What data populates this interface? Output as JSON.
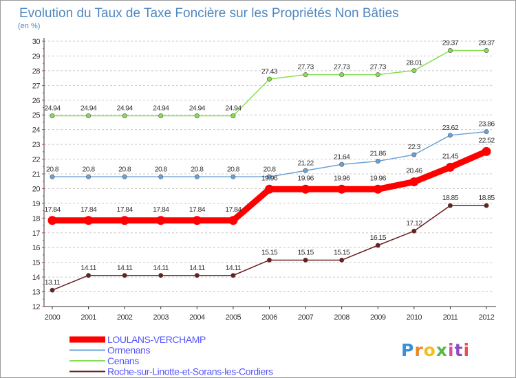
{
  "chart_data": {
    "type": "line",
    "title": "Evolution du Taux de Taxe Foncière sur les Propriétés Non Bâties",
    "ylabel": "(en %)",
    "x": [
      "2000",
      "2001",
      "2002",
      "2003",
      "2004",
      "2005",
      "2006",
      "2007",
      "2008",
      "2009",
      "2010",
      "2011",
      "2012"
    ],
    "ylim": [
      12,
      30
    ],
    "yticks": [
      "12",
      "13",
      "14",
      "15",
      "16",
      "17",
      "18",
      "19",
      "20",
      "21",
      "22",
      "23",
      "24",
      "25",
      "26",
      "27",
      "28",
      "29",
      "30"
    ],
    "grid": "horizontal dashed",
    "legend_position": "bottom-left",
    "series": [
      {
        "name": "LOULANS-VERCHAMP",
        "color": "#ff0000",
        "legend_text_color": "#5555ff",
        "emphasis": "bold",
        "values": [
          17.84,
          17.84,
          17.84,
          17.84,
          17.84,
          17.84,
          19.96,
          19.96,
          19.96,
          19.96,
          20.46,
          21.45,
          22.52
        ],
        "labels": [
          "17.84",
          "17.84",
          "17.84",
          "17.84",
          "17.84",
          "17.84",
          "19.96",
          "19.96",
          "19.96",
          "19.96",
          "20.46",
          "21.45",
          "22.52"
        ]
      },
      {
        "name": "Ormenans",
        "color": "#6aa2d8",
        "legend_text_color": "#5555ff",
        "emphasis": "normal",
        "values": [
          20.8,
          20.8,
          20.8,
          20.8,
          20.8,
          20.8,
          20.8,
          21.22,
          21.64,
          21.86,
          22.3,
          23.62,
          23.86
        ],
        "labels": [
          "20.8",
          "20.8",
          "20.8",
          "20.8",
          "20.8",
          "20.8",
          "20.8",
          "21.22",
          "21.64",
          "21.86",
          "22.3",
          "23.62",
          "23.86"
        ]
      },
      {
        "name": "Cenans",
        "color": "#88dd55",
        "legend_text_color": "#5555ff",
        "emphasis": "normal",
        "values": [
          24.94,
          24.94,
          24.94,
          24.94,
          24.94,
          24.94,
          27.43,
          27.73,
          27.73,
          27.73,
          28.01,
          29.37,
          29.37
        ],
        "labels": [
          "24.94",
          "24.94",
          "24.94",
          "24.94",
          "24.94",
          "24.94",
          "27.43",
          "27.73",
          "27.73",
          "27.73",
          "28.01",
          "29.37",
          "29.37"
        ]
      },
      {
        "name": "Roche-sur-Linotte-et-Sorans-les-Cordiers",
        "color": "#6b1f1f",
        "legend_text_color": "#5555ff",
        "emphasis": "normal",
        "values": [
          13.11,
          14.11,
          14.11,
          14.11,
          14.11,
          14.11,
          15.15,
          15.15,
          15.15,
          16.15,
          17.12,
          18.85,
          18.85
        ],
        "labels": [
          "13.11",
          "14.11",
          "14.11",
          "14.11",
          "14.11",
          "14.11",
          "15.15",
          "15.15",
          "15.15",
          "16.15",
          "17.12",
          "18.85",
          "18.85"
        ]
      }
    ]
  },
  "logo": {
    "text": "Proxiti",
    "letters": [
      "P",
      "r",
      "o",
      "x",
      "i",
      "t",
      "i"
    ],
    "colors": [
      "#3a8fd9",
      "#e8862a",
      "#f2c01e",
      "#55b848",
      "#d94f9a",
      "#8a4fc8",
      "#e84f4f"
    ]
  },
  "theme": {
    "title_color": "#4f87c0",
    "axis_text_color": "#333333",
    "axis_color": "#333333",
    "grid_color": "#c8c8c8",
    "label_color": "#333333",
    "tick_mark_color": "#e04040"
  }
}
